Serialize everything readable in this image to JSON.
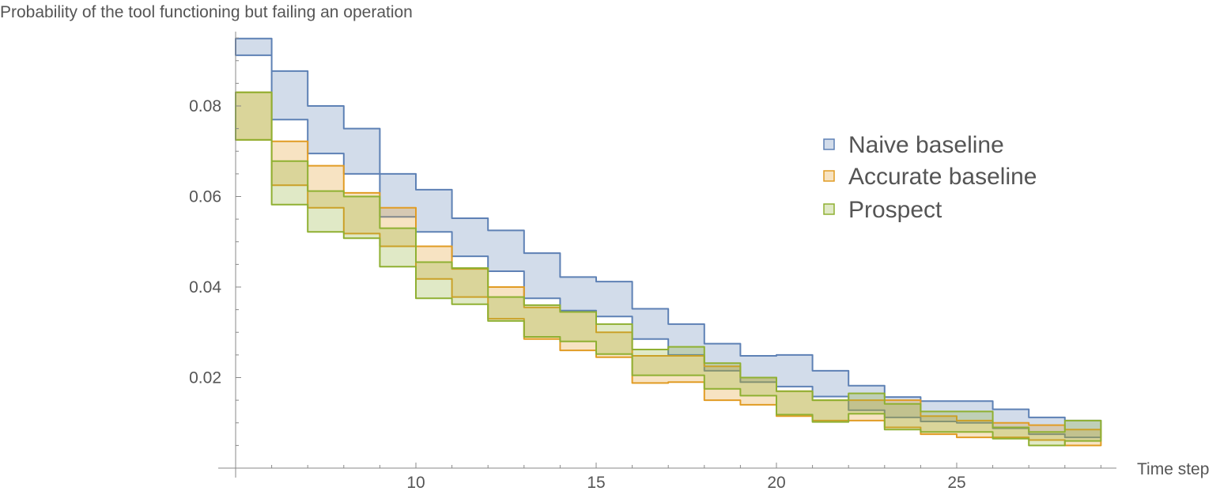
{
  "chart_data": {
    "type": "area",
    "title": "",
    "ylabel": "Probability of the tool functioning but failing an operation",
    "xlabel": "Time step",
    "xlim": [
      5,
      29.5
    ],
    "ylim": [
      0,
      0.095
    ],
    "xticks": [
      10,
      15,
      20,
      25
    ],
    "xtick_labels": [
      "10",
      "15",
      "20",
      "25"
    ],
    "yticks": [
      0.02,
      0.04,
      0.06,
      0.08
    ],
    "ytick_labels": [
      "0.02",
      "0.04",
      "0.06",
      "0.08"
    ],
    "grid": false,
    "legend_position": "right",
    "x": [
      5,
      6,
      7,
      8,
      9,
      10,
      11,
      12,
      13,
      14,
      15,
      16,
      17,
      18,
      19,
      20,
      21,
      22,
      23,
      24,
      25,
      26,
      27,
      28
    ],
    "series": [
      {
        "name": "Naive baseline",
        "color": "#5E81B5",
        "fill": "rgba(94,129,181,0.28)",
        "upper": [
          0.0949,
          0.0877,
          0.08,
          0.075,
          0.065,
          0.0615,
          0.0552,
          0.0525,
          0.0475,
          0.0422,
          0.0412,
          0.0352,
          0.0318,
          0.0275,
          0.0248,
          0.025,
          0.0215,
          0.0182,
          0.0157,
          0.0148,
          0.0148,
          0.013,
          0.0112,
          0.0105
        ],
        "lower": [
          0.0912,
          0.077,
          0.0695,
          0.065,
          0.0555,
          0.0522,
          0.0468,
          0.0435,
          0.0375,
          0.0348,
          0.0335,
          0.0285,
          0.025,
          0.0215,
          0.019,
          0.018,
          0.0158,
          0.0128,
          0.0112,
          0.0103,
          0.01,
          0.0088,
          0.0075,
          0.0068
        ]
      },
      {
        "name": "Accurate baseline",
        "color": "#E19C24",
        "fill": "rgba(225,156,36,0.28)",
        "upper": [
          0.083,
          0.0722,
          0.0668,
          0.0608,
          0.0575,
          0.049,
          0.044,
          0.04,
          0.0355,
          0.0345,
          0.03,
          0.0248,
          0.0248,
          0.0225,
          0.02,
          0.017,
          0.015,
          0.015,
          0.015,
          0.0115,
          0.0105,
          0.01,
          0.0095,
          0.0085
        ],
        "lower": [
          0.0725,
          0.0625,
          0.0575,
          0.0518,
          0.049,
          0.0418,
          0.0378,
          0.033,
          0.0285,
          0.026,
          0.0245,
          0.0188,
          0.019,
          0.015,
          0.014,
          0.0115,
          0.0105,
          0.0105,
          0.009,
          0.0075,
          0.0068,
          0.0068,
          0.0062,
          0.005
        ]
      },
      {
        "name": "Prospect",
        "color": "#8FB032",
        "fill": "rgba(143,176,50,0.28)",
        "upper": [
          0.083,
          0.0678,
          0.0612,
          0.06,
          0.053,
          0.0455,
          0.0442,
          0.0378,
          0.036,
          0.0345,
          0.0318,
          0.0262,
          0.0268,
          0.0232,
          0.02,
          0.017,
          0.015,
          0.0165,
          0.0142,
          0.0125,
          0.0125,
          0.009,
          0.008,
          0.0105
        ],
        "lower": [
          0.0725,
          0.0582,
          0.0522,
          0.0508,
          0.0445,
          0.0375,
          0.0362,
          0.0325,
          0.029,
          0.028,
          0.0252,
          0.0205,
          0.0205,
          0.0175,
          0.016,
          0.0118,
          0.0102,
          0.012,
          0.0085,
          0.008,
          0.008,
          0.0065,
          0.005,
          0.006
        ]
      }
    ]
  }
}
